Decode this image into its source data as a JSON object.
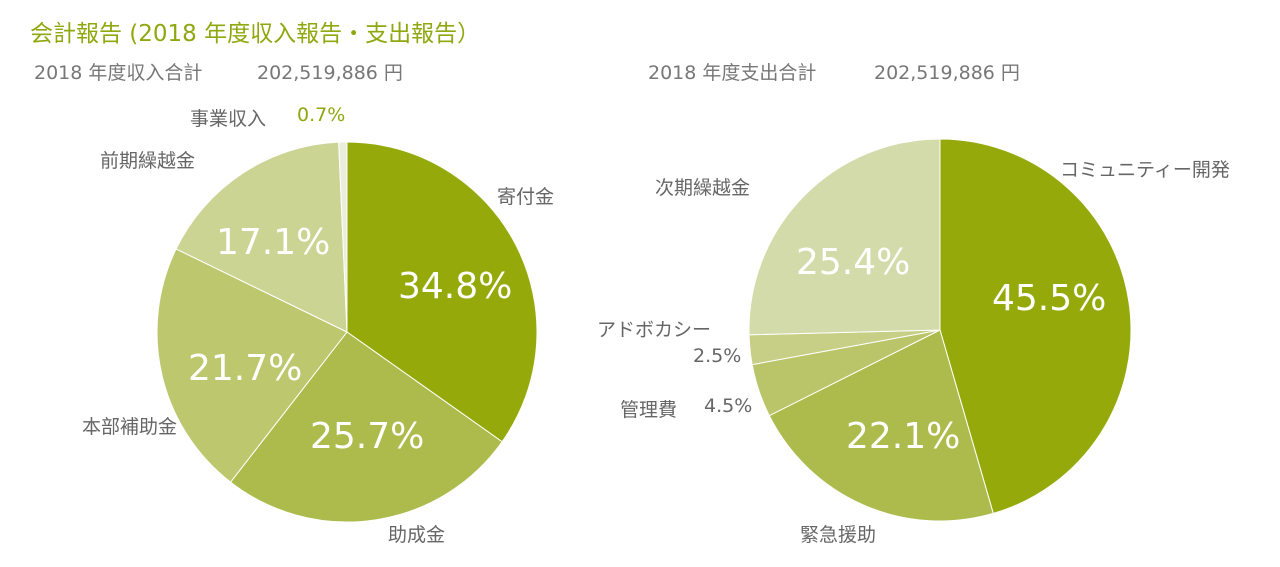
{
  "title": "会計報告 (2018 年度収入報告・支出報告）",
  "chart_data": [
    {
      "type": "pie",
      "title": "2018 年度収入合計",
      "total": "202,519,886 円",
      "start": "top",
      "direction": "clockwise",
      "slices": [
        {
          "label": "寄付金",
          "value": 34.8,
          "text": "34.8%",
          "color": "#95aa0a"
        },
        {
          "label": "助成金",
          "value": 25.7,
          "text": "25.7%",
          "color": "#acbb4b"
        },
        {
          "label": "本部補助金",
          "value": 21.7,
          "text": "21.7%",
          "color": "#bdc76d"
        },
        {
          "label": "前期繰越金",
          "value": 17.1,
          "text": "17.1%",
          "color": "#cbd492"
        },
        {
          "label": "事業収入",
          "value": 0.7,
          "text": "0.7%",
          "color": "#ebeddd"
        }
      ]
    },
    {
      "type": "pie",
      "title": "2018 年度支出合計",
      "total": "202,519,886 円",
      "start": "top",
      "direction": "clockwise",
      "slices": [
        {
          "label": "コミュニティー開発",
          "value": 45.5,
          "text": "45.5%",
          "color": "#95aa0a"
        },
        {
          "label": "緊急援助",
          "value": 22.1,
          "text": "22.1%",
          "color": "#acbb4b"
        },
        {
          "label": "管理費",
          "value": 4.5,
          "text": "4.5%",
          "color": "#bac56a"
        },
        {
          "label": "アドボカシー",
          "value": 2.5,
          "text": "2.5%",
          "color": "#c6cf85"
        },
        {
          "label": "次期繰越金",
          "value": 25.4,
          "text": "25.4%",
          "color": "#d4dbaa"
        }
      ]
    }
  ]
}
